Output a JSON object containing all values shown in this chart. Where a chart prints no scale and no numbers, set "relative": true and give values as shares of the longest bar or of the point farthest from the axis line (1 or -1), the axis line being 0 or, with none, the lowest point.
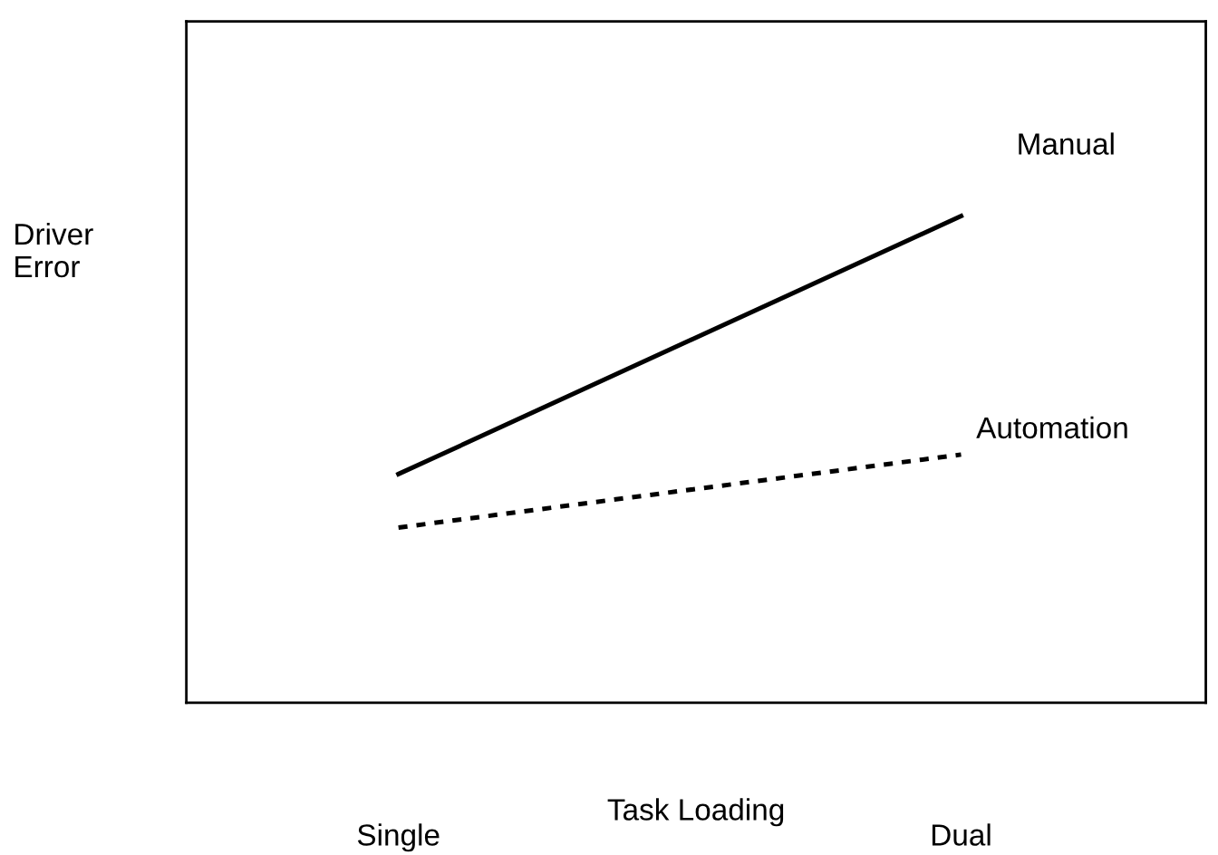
{
  "chart_data": {
    "type": "line",
    "relative": true,
    "xlabel": "Task Loading",
    "ylabel": "Driver\nError",
    "categories": [
      "Single",
      "Dual"
    ],
    "series": [
      {
        "name": "Manual",
        "color": "#000000",
        "line_style": "solid",
        "values": [
          0.47,
          1
        ]
      },
      {
        "name": "Automation",
        "color": "#000000",
        "line_style": "dotted",
        "values": [
          0.36,
          0.51
        ]
      }
    ],
    "legend": false,
    "grid": false,
    "marker": "none"
  }
}
